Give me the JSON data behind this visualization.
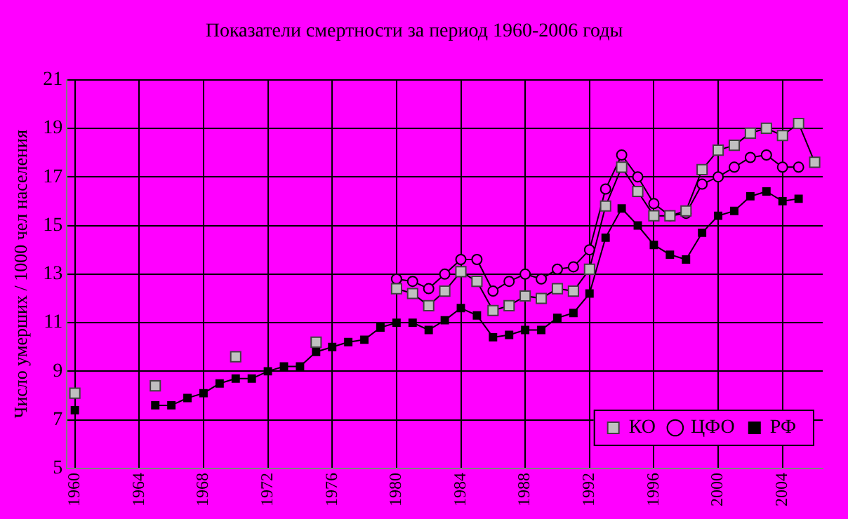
{
  "chart_data": {
    "type": "line",
    "title": "Показатели смертности за период 1960-2006 годы",
    "ylabel": "Число умерших / 1000 чел населения",
    "x": [
      1960,
      1961,
      1962,
      1963,
      1964,
      1965,
      1966,
      1967,
      1968,
      1969,
      1970,
      1971,
      1972,
      1973,
      1974,
      1975,
      1976,
      1977,
      1978,
      1979,
      1980,
      1981,
      1982,
      1983,
      1984,
      1985,
      1986,
      1987,
      1988,
      1989,
      1990,
      1991,
      1992,
      1993,
      1994,
      1995,
      1996,
      1997,
      1998,
      1999,
      2000,
      2001,
      2002,
      2003,
      2004,
      2005,
      2006
    ],
    "series": [
      {
        "name": "РФ",
        "color": "#000000",
        "marker": "square",
        "values": [
          7.4,
          null,
          null,
          null,
          null,
          7.6,
          7.6,
          7.9,
          8.1,
          8.5,
          8.7,
          8.7,
          9.0,
          9.2,
          9.2,
          9.8,
          10.0,
          10.2,
          10.3,
          10.8,
          11.0,
          11.0,
          10.7,
          11.1,
          11.6,
          11.3,
          10.4,
          10.5,
          10.7,
          10.7,
          11.2,
          11.4,
          12.2,
          14.5,
          15.7,
          15.0,
          14.2,
          13.8,
          13.6,
          14.7,
          15.4,
          15.6,
          16.2,
          16.4,
          16.0,
          16.1,
          null
        ]
      },
      {
        "name": "ЦФО",
        "color": "#000000",
        "marker": "circle",
        "values": [
          null,
          null,
          null,
          null,
          null,
          null,
          null,
          null,
          null,
          null,
          null,
          null,
          null,
          null,
          null,
          null,
          null,
          null,
          null,
          null,
          12.8,
          12.7,
          12.4,
          13.0,
          13.6,
          13.6,
          12.3,
          12.7,
          13.0,
          12.8,
          13.2,
          13.3,
          14.0,
          16.5,
          17.9,
          17.0,
          15.9,
          15.4,
          15.5,
          16.7,
          17.0,
          17.4,
          17.8,
          17.9,
          17.4,
          17.4,
          null
        ]
      },
      {
        "name": "КО",
        "color": "#c0c0c0",
        "marker": "square",
        "values": [
          8.1,
          null,
          null,
          null,
          null,
          8.4,
          null,
          null,
          null,
          null,
          9.6,
          null,
          null,
          null,
          null,
          10.2,
          null,
          null,
          null,
          null,
          12.4,
          12.2,
          11.7,
          12.3,
          13.1,
          12.7,
          11.5,
          11.7,
          12.1,
          12.0,
          12.4,
          12.3,
          13.2,
          15.8,
          17.4,
          16.4,
          15.4,
          15.4,
          15.6,
          17.3,
          18.1,
          18.3,
          18.8,
          19.0,
          18.7,
          19.2,
          17.6
        ]
      }
    ],
    "xlim": [
      1959.5,
      2006.5
    ],
    "xticks": [
      1960,
      1964,
      1968,
      1972,
      1976,
      1980,
      1984,
      1988,
      1992,
      1996,
      2000,
      2004
    ],
    "ylim": [
      5,
      21
    ],
    "yticks": [
      5,
      7,
      9,
      11,
      13,
      15,
      17,
      19,
      21
    ],
    "grid": true,
    "legend": "bottom right"
  }
}
